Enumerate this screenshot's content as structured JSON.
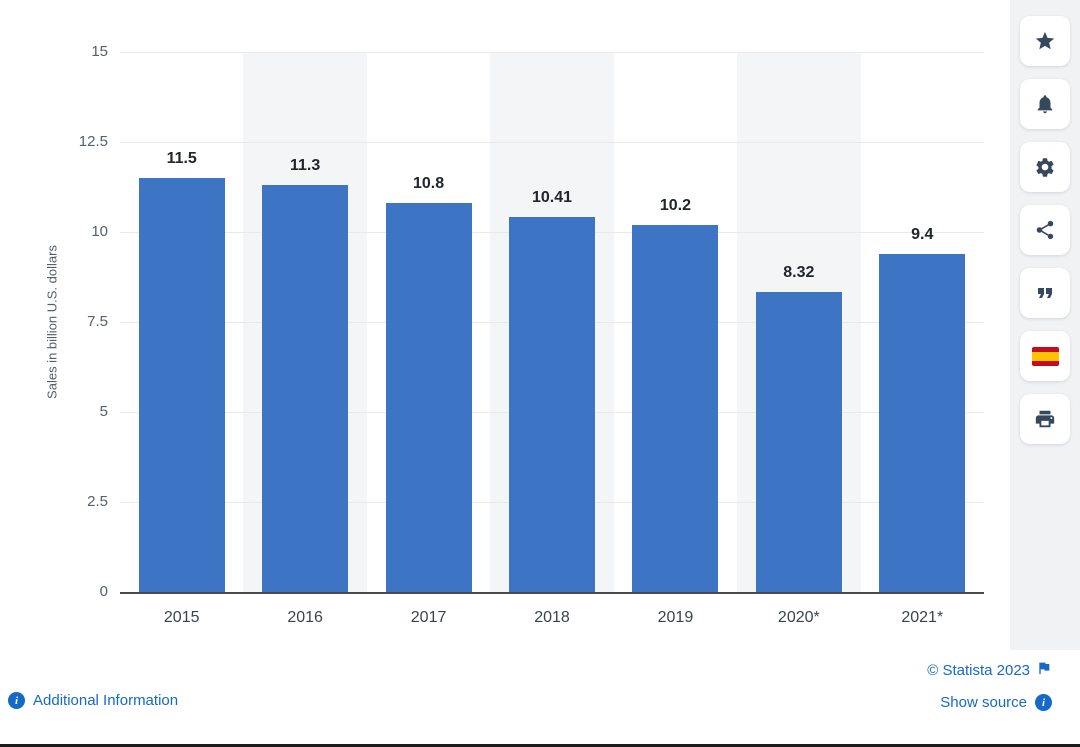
{
  "chart_data": {
    "type": "bar",
    "title": "",
    "categories": [
      "2015",
      "2016",
      "2017",
      "2018",
      "2019",
      "2020*",
      "2021*"
    ],
    "values": [
      11.5,
      11.3,
      10.8,
      10.41,
      10.2,
      8.32,
      9.4
    ],
    "value_labels": [
      "11.5",
      "11.3",
      "10.8",
      "10.41",
      "10.2",
      "8.32",
      "9.4"
    ],
    "xlabel": "",
    "ylabel": "Sales in billion U.S. dollars",
    "ylim": [
      0,
      15
    ],
    "yticks": [
      0,
      2.5,
      5,
      7.5,
      10,
      12.5,
      15
    ],
    "ytick_labels": [
      "0",
      "2.5",
      "5",
      "7.5",
      "10",
      "12.5",
      "15"
    ],
    "grid": true,
    "legend": "none",
    "bar_color": "#3e74c4",
    "band_color": "#f4f5f6"
  },
  "sidebar": {
    "icons": [
      "star-icon",
      "bell-icon",
      "gear-icon",
      "share-icon",
      "quote-icon",
      "spain-flag-icon",
      "print-icon"
    ]
  },
  "footer": {
    "additional_info": "Additional Information",
    "copyright": "© Statista 2023",
    "show_source": "Show source"
  },
  "colors": {
    "accent_blue": "#1569c7",
    "bar_blue": "#3e74c4",
    "icon_navy": "#35485e"
  }
}
